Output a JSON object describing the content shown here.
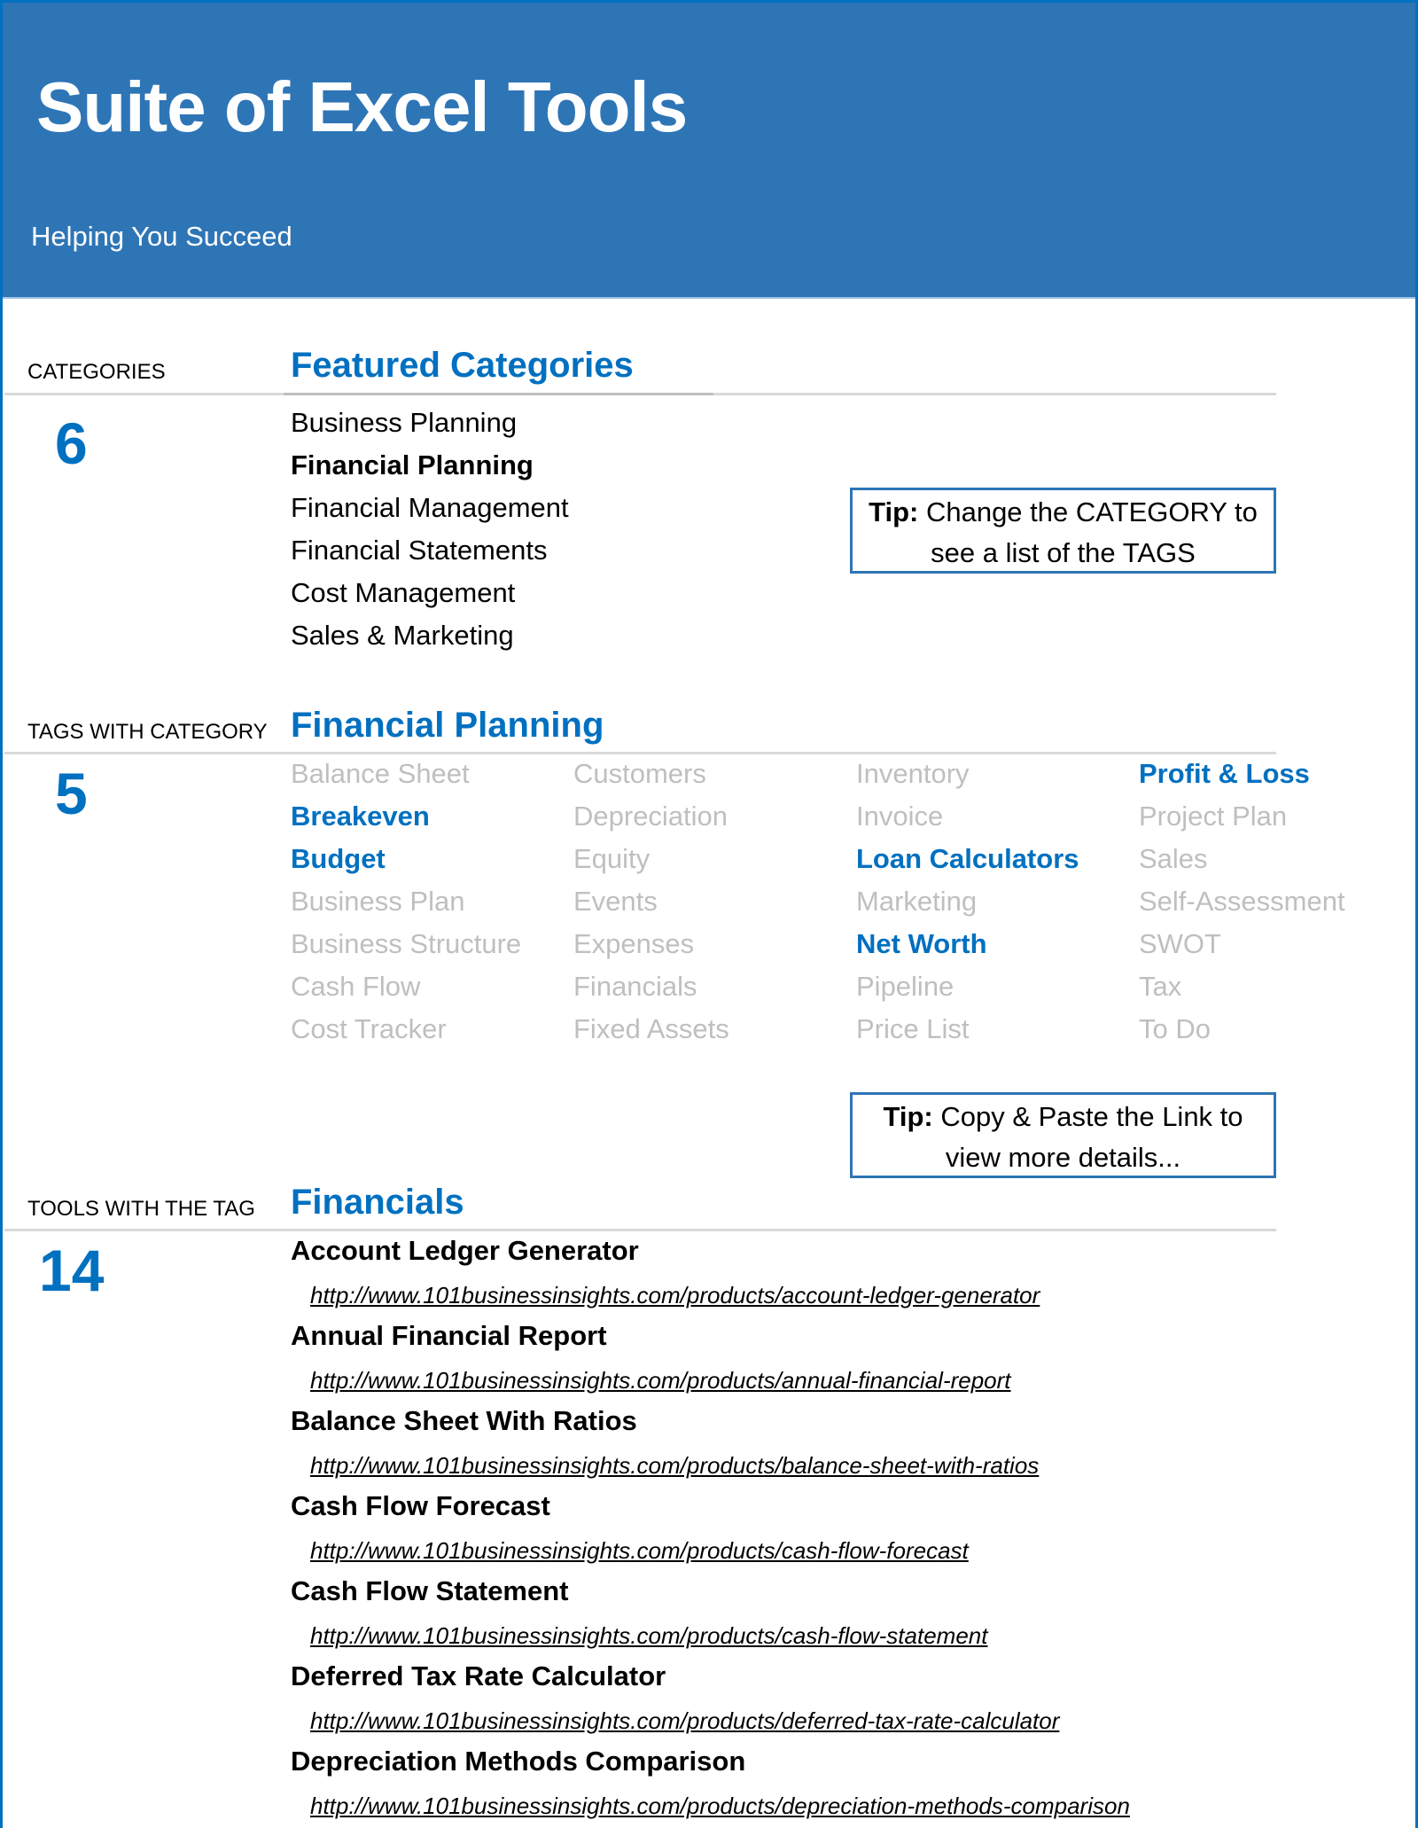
{
  "header": {
    "title": "Suite of Excel Tools",
    "subtitle": "Helping You Succeed"
  },
  "colors": {
    "header_bg": "#2E75B6",
    "accent": "#0070C0",
    "inactive_tag": "#bfbfbf"
  },
  "categories": {
    "label": "CATEGORIES",
    "heading": "Featured Categories",
    "count": "6",
    "items": [
      "Business Planning",
      "Financial Planning",
      "Financial Management",
      "Financial Statements",
      "Cost Management",
      "Sales & Marketing"
    ],
    "selected": "Financial Planning"
  },
  "tip1": {
    "bold": "Tip:",
    "line1": " Change the CATEGORY to",
    "line2": "see a list of the TAGS"
  },
  "tags": {
    "label": "TAGS WITH CATEGORY",
    "heading": "Financial Planning",
    "count": "5",
    "columns": [
      [
        {
          "t": "Balance Sheet",
          "on": false
        },
        {
          "t": "Breakeven",
          "on": true
        },
        {
          "t": "Budget",
          "on": true
        },
        {
          "t": "Business Plan",
          "on": false
        },
        {
          "t": "Business Structure",
          "on": false
        },
        {
          "t": "Cash Flow",
          "on": false
        },
        {
          "t": "Cost Tracker",
          "on": false
        }
      ],
      [
        {
          "t": "Customers",
          "on": false
        },
        {
          "t": "Depreciation",
          "on": false
        },
        {
          "t": "Equity",
          "on": false
        },
        {
          "t": "Events",
          "on": false
        },
        {
          "t": "Expenses",
          "on": false
        },
        {
          "t": "Financials",
          "on": false
        },
        {
          "t": "Fixed Assets",
          "on": false
        }
      ],
      [
        {
          "t": "Inventory",
          "on": false
        },
        {
          "t": "Invoice",
          "on": false
        },
        {
          "t": "Loan Calculators",
          "on": true
        },
        {
          "t": "Marketing",
          "on": false
        },
        {
          "t": "Net Worth",
          "on": true
        },
        {
          "t": "Pipeline",
          "on": false
        },
        {
          "t": "Price List",
          "on": false
        }
      ],
      [
        {
          "t": "Profit & Loss",
          "on": true
        },
        {
          "t": "Project Plan",
          "on": false
        },
        {
          "t": "Sales",
          "on": false
        },
        {
          "t": "Self-Assessment",
          "on": false
        },
        {
          "t": "SWOT",
          "on": false
        },
        {
          "t": "Tax",
          "on": false
        },
        {
          "t": "To Do",
          "on": false
        }
      ]
    ]
  },
  "tip2": {
    "bold": "Tip:",
    "line1": " Copy & Paste the Link to",
    "line2": "view more details..."
  },
  "tools": {
    "label": "TOOLS WITH THE TAG",
    "heading": "Financials",
    "count": "14",
    "items": [
      {
        "name": "Account Ledger Generator",
        "url": "http://www.101businessinsights.com/products/account-ledger-generator"
      },
      {
        "name": "Annual Financial Report",
        "url": "http://www.101businessinsights.com/products/annual-financial-report"
      },
      {
        "name": "Balance Sheet With Ratios",
        "url": "http://www.101businessinsights.com/products/balance-sheet-with-ratios"
      },
      {
        "name": "Cash Flow Forecast",
        "url": "http://www.101businessinsights.com/products/cash-flow-forecast"
      },
      {
        "name": "Cash Flow Statement",
        "url": "http://www.101businessinsights.com/products/cash-flow-statement"
      },
      {
        "name": "Deferred Tax Rate Calculator",
        "url": "http://www.101businessinsights.com/products/deferred-tax-rate-calculator"
      },
      {
        "name": "Depreciation Methods Comparison",
        "url": "http://www.101businessinsights.com/products/depreciation-methods-comparison"
      }
    ]
  }
}
